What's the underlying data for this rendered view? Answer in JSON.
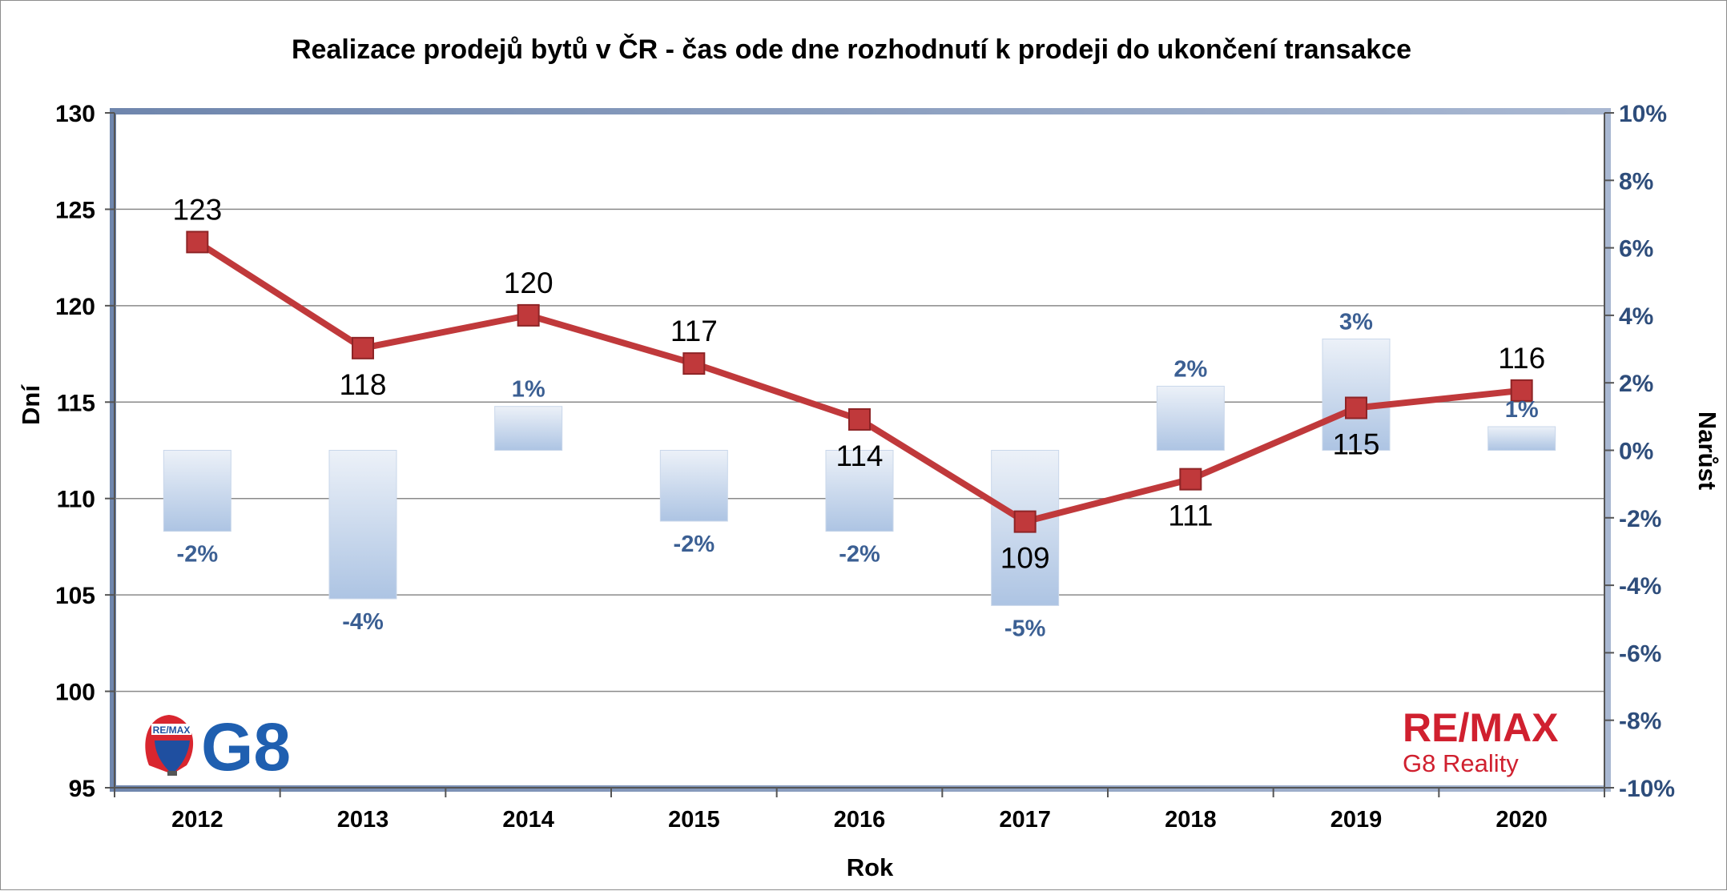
{
  "chart_data": {
    "type": "line",
    "title": "Realizace prodejů bytů v ČR - čas ode dne rozhodnutí k prodeji do ukončení transakce",
    "xlabel": "Rok",
    "ylabel": "Dní",
    "y2label": "Narůst",
    "categories": [
      "2012",
      "2013",
      "2014",
      "2015",
      "2016",
      "2017",
      "2018",
      "2019",
      "2020"
    ],
    "series": [
      {
        "type": "line",
        "axis": "left",
        "color": "#c0393b",
        "values": [
          123.3,
          117.8,
          119.5,
          117.0,
          114.1,
          108.8,
          111.0,
          114.7,
          115.6
        ],
        "labels": [
          "123",
          "118",
          "120",
          "117",
          "114",
          "109",
          "111",
          "115",
          "116"
        ]
      },
      {
        "type": "bar",
        "axis": "right",
        "color": "#b9cce6",
        "values": [
          -2.4,
          -4.4,
          1.3,
          -2.1,
          -2.4,
          -4.6,
          1.9,
          3.3,
          0.7
        ],
        "labels": [
          "-2%",
          "-4%",
          "1%",
          "-2%",
          "-2%",
          "-5%",
          "2%",
          "3%",
          "1%"
        ]
      }
    ],
    "y_left": {
      "ylim": [
        95,
        130
      ],
      "ticks": [
        "95",
        "100",
        "105",
        "110",
        "115",
        "120",
        "125",
        "130"
      ]
    },
    "y_right": {
      "ylim": [
        -10,
        10
      ],
      "ticks": [
        "-10%",
        "-8%",
        "-6%",
        "-4%",
        "-2%",
        "0%",
        "2%",
        "4%",
        "6%",
        "8%",
        "10%"
      ]
    },
    "grid": true,
    "legend": "none"
  },
  "logos": {
    "left": {
      "balloon": "RE/MAX",
      "text": "G8"
    },
    "right": {
      "brand": "RE/MAX",
      "sub": "G8 Reality"
    }
  }
}
